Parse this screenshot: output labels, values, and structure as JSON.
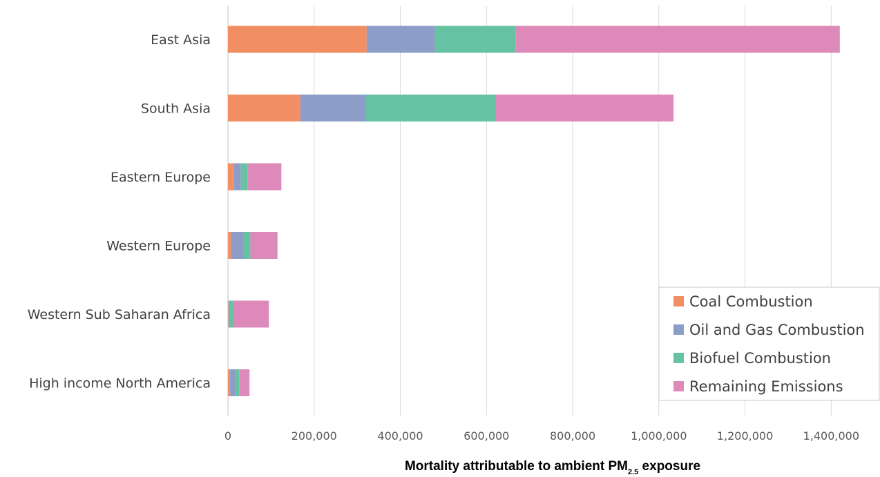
{
  "chart_data": {
    "type": "bar",
    "orientation": "horizontal",
    "stacked": true,
    "categories": [
      "East Asia",
      "South Asia",
      "Eastern Europe",
      "Western Europe",
      "Western Sub Saharan Africa",
      "High income North America"
    ],
    "series": [
      {
        "name": "Coal Combustion",
        "color": "#f28e64",
        "values": [
          322000,
          168000,
          14000,
          7000,
          1000,
          5000
        ]
      },
      {
        "name": "Oil and Gas Combustion",
        "color": "#8c9dc7",
        "values": [
          158000,
          152000,
          16000,
          29000,
          1000,
          13000
        ]
      },
      {
        "name": "Biofuel Combustion",
        "color": "#66c2a2",
        "values": [
          188000,
          302000,
          16000,
          16000,
          10000,
          8000
        ]
      },
      {
        "name": "Remaining Emissions",
        "color": "#dd89ba",
        "values": [
          752000,
          412000,
          78000,
          63000,
          83000,
          24000
        ]
      }
    ],
    "xlim": [
      0,
      1500000
    ],
    "xticks": [
      0,
      200000,
      400000,
      600000,
      800000,
      1000000,
      1200000,
      1400000
    ],
    "xtick_labels": [
      "0",
      "200,000",
      "400,000",
      "600,000",
      "800,000",
      "1,000,000",
      "1,200,000",
      "1,400,000"
    ],
    "xlabel": {
      "main": "Mortality attributable to ambient PM",
      "subscript": "2.5",
      "suffix": " exposure"
    },
    "grid": true,
    "legend_position": "bottom-right"
  }
}
